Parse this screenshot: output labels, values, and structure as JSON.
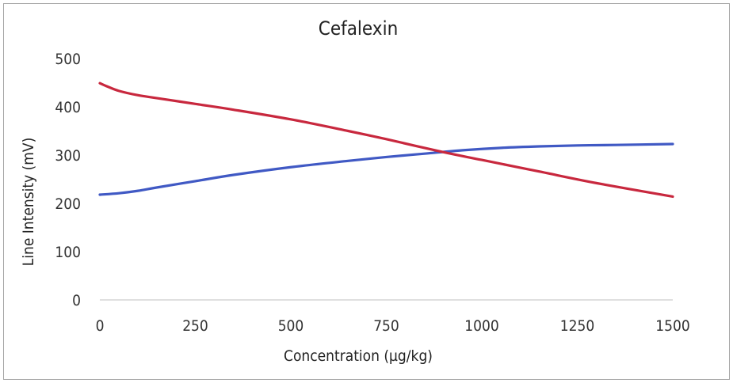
{
  "chart_data": {
    "type": "line",
    "title": "Cefalexin",
    "xlabel": "Concentration (µg/kg)",
    "ylabel": "Line Intensity (mV)",
    "xlim": [
      0,
      1500
    ],
    "ylim": [
      0,
      500
    ],
    "x_ticks": [
      0,
      250,
      500,
      750,
      1000,
      1250,
      1500
    ],
    "y_ticks": [
      0,
      100,
      200,
      300,
      400,
      500
    ],
    "grid": false,
    "legend": "none",
    "series": [
      {
        "color": "#4059c4",
        "x": [
          0,
          50,
          100,
          150,
          250,
          350,
          500,
          650,
          750,
          850,
          950,
          1050,
          1150,
          1250,
          1350,
          1500
        ],
        "y": [
          218,
          221,
          226,
          233,
          246,
          259,
          275,
          288,
          296,
          303,
          310,
          315,
          318,
          320,
          321,
          323
        ]
      },
      {
        "color": "#c8283e",
        "x": [
          0,
          20,
          50,
          100,
          150,
          250,
          350,
          500,
          650,
          750,
          900,
          1000,
          1150,
          1300,
          1500
        ],
        "y": [
          449,
          442,
          433,
          424,
          418,
          406,
          394,
          374,
          350,
          333,
          306,
          290,
          266,
          242,
          214
        ]
      }
    ]
  }
}
